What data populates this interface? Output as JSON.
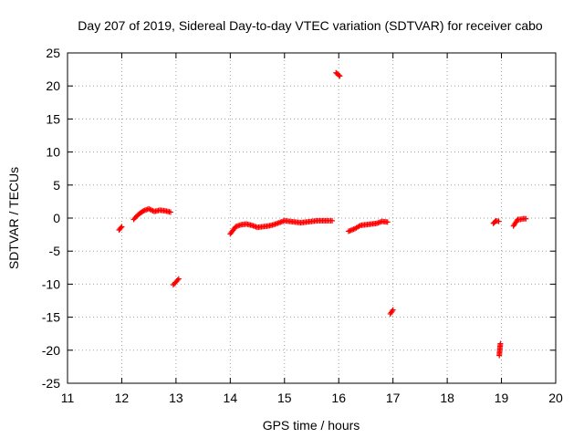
{
  "chart_data": {
    "type": "scatter",
    "title": "Day 207 of 2019, Sidereal Day-to-day VTEC variation (SDTVAR) for receiver cabo",
    "xlabel": "GPS time / hours",
    "ylabel": "SDTVAR / TECUs",
    "xlim": [
      11,
      20
    ],
    "ylim": [
      -25,
      25
    ],
    "xticks": [
      11,
      12,
      13,
      14,
      15,
      16,
      17,
      18,
      19,
      20
    ],
    "yticks": [
      -25,
      -20,
      -15,
      -10,
      -5,
      0,
      5,
      10,
      15,
      20,
      25
    ],
    "grid": true,
    "marker": "plus",
    "series_color": "#ff0000",
    "segments": [
      {
        "x": [
          11.95,
          12.0
        ],
        "y": [
          -1.8,
          -1.3
        ]
      },
      {
        "x": [
          12.22,
          12.3,
          12.4,
          12.5,
          12.6,
          12.7,
          12.8,
          12.9
        ],
        "y": [
          -0.2,
          0.5,
          1.1,
          1.4,
          1.0,
          1.2,
          1.1,
          0.9
        ]
      },
      {
        "x": [
          12.95,
          13.05
        ],
        "y": [
          -10.1,
          -9.2
        ]
      },
      {
        "x": [
          14.0,
          14.1,
          14.2,
          14.3,
          14.4,
          14.5,
          14.6,
          14.7,
          14.8,
          14.9,
          15.0,
          15.1,
          15.2,
          15.3,
          15.4,
          15.5,
          15.6,
          15.7,
          15.8,
          15.88
        ],
        "y": [
          -2.4,
          -1.3,
          -1.0,
          -0.9,
          -1.1,
          -1.4,
          -1.3,
          -1.2,
          -1.0,
          -0.7,
          -0.4,
          -0.5,
          -0.6,
          -0.7,
          -0.6,
          -0.5,
          -0.4,
          -0.4,
          -0.4,
          -0.4
        ]
      },
      {
        "x": [
          15.95,
          16.02
        ],
        "y": [
          22.0,
          21.5
        ]
      },
      {
        "x": [
          16.18,
          16.3,
          16.4,
          16.5,
          16.6,
          16.7,
          16.8,
          16.9
        ],
        "y": [
          -2.0,
          -1.6,
          -1.1,
          -1.0,
          -0.9,
          -0.8,
          -0.5,
          -0.6
        ]
      },
      {
        "x": [
          16.95,
          17.0
        ],
        "y": [
          -14.5,
          -13.9
        ]
      },
      {
        "x": [
          18.85,
          18.9,
          18.95
        ],
        "y": [
          -0.8,
          -0.4,
          -0.5
        ]
      },
      {
        "x": [
          18.96,
          18.97,
          18.98
        ],
        "y": [
          -20.8,
          -19.8,
          -19.0
        ]
      },
      {
        "x": [
          19.22,
          19.3,
          19.35,
          19.4,
          19.45
        ],
        "y": [
          -1.2,
          -0.2,
          -0.2,
          -0.1,
          -0.1
        ]
      }
    ]
  }
}
